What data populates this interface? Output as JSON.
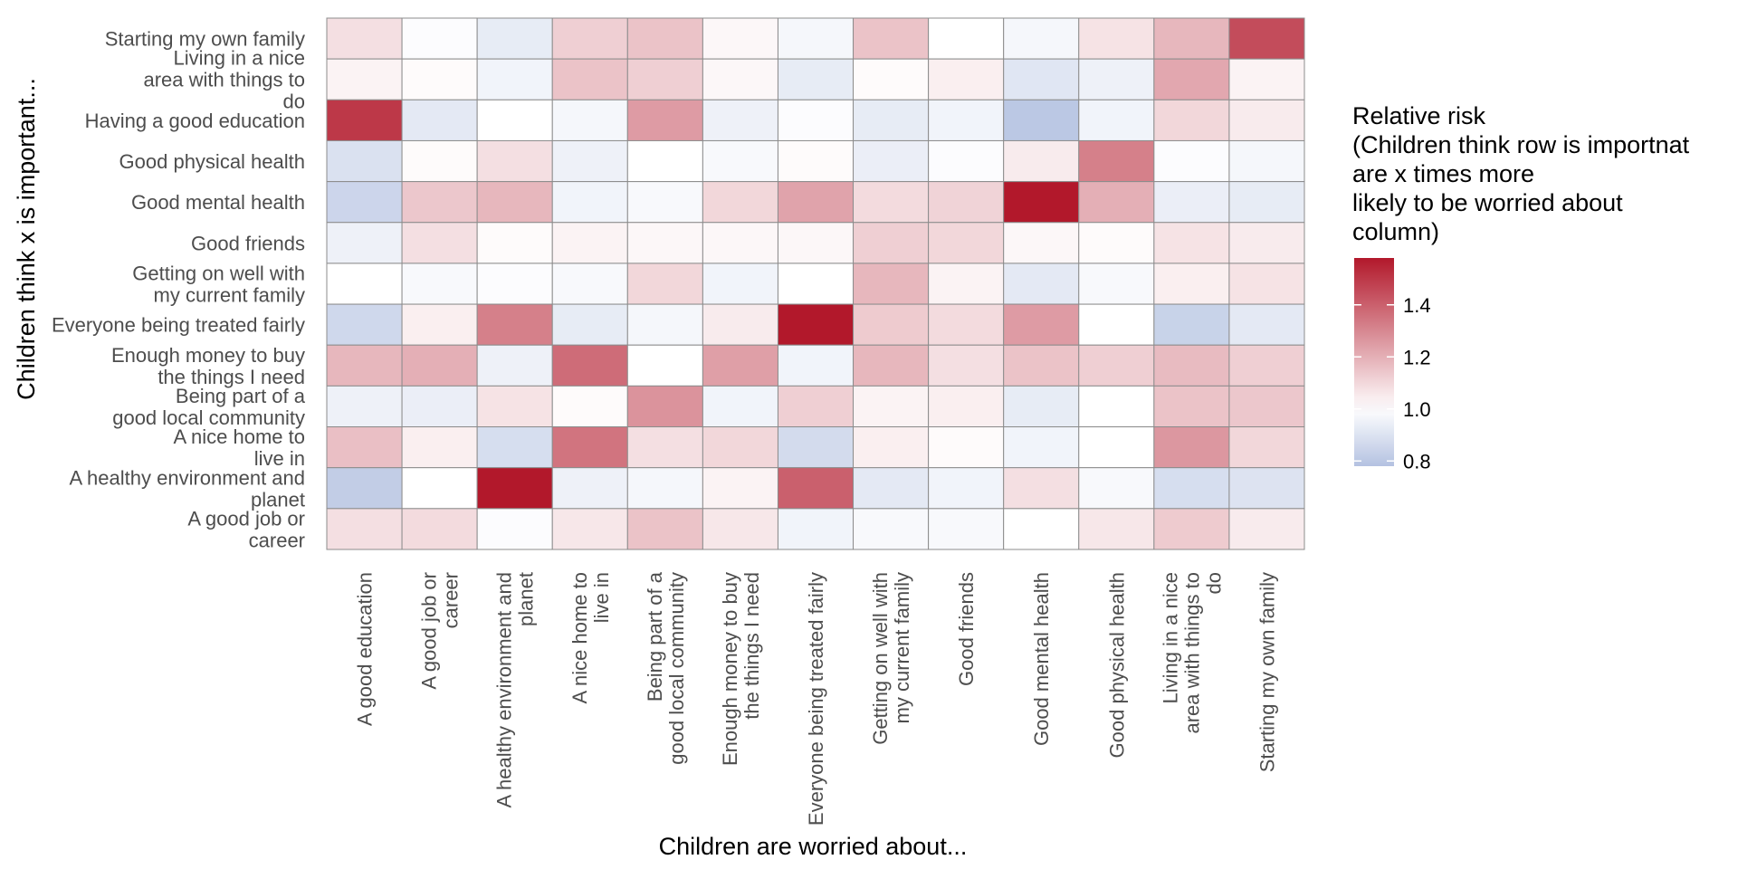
{
  "chart_data": {
    "type": "heatmap",
    "xlabel": "Children are worried about...",
    "ylabel": "Children think x is important...",
    "x_categories": [
      [
        "A good education"
      ],
      [
        "A good job or",
        "career"
      ],
      [
        "A healthy environment and",
        "planet"
      ],
      [
        "A nice home to",
        "live in"
      ],
      [
        "Being part of a",
        "good local community"
      ],
      [
        "Enough money to buy",
        "the things I need"
      ],
      [
        "Everyone being treated fairly"
      ],
      [
        "Getting on well with",
        "my current family"
      ],
      [
        "Good friends"
      ],
      [
        "Good mental health"
      ],
      [
        "Good physical health"
      ],
      [
        "Living in a nice",
        "area with things to",
        "do"
      ],
      [
        "Starting my own family"
      ]
    ],
    "y_categories": [
      [
        "Starting my own family"
      ],
      [
        "Living in a nice",
        "area with things to",
        "do"
      ],
      [
        "Having a good education"
      ],
      [
        "Good physical health"
      ],
      [
        "Good mental health"
      ],
      [
        "Good friends"
      ],
      [
        "Getting on well with",
        "my current family"
      ],
      [
        "Everyone being treated fairly"
      ],
      [
        "Enough money to buy",
        "the things I need"
      ],
      [
        "Being part of a",
        "good local community"
      ],
      [
        "A nice home to",
        "live in"
      ],
      [
        "A healthy environment and",
        "planet"
      ],
      [
        "A good job or",
        "career"
      ]
    ],
    "values": [
      [
        1.08,
        0.99,
        0.93,
        1.12,
        1.15,
        1.02,
        0.97,
        1.15,
        1.0,
        0.97,
        1.07,
        1.18,
        1.45
      ],
      [
        1.03,
        1.01,
        0.96,
        1.15,
        1.12,
        1.02,
        0.93,
        1.01,
        1.04,
        0.91,
        0.95,
        1.22,
        1.03
      ],
      [
        1.5,
        0.92,
        1.0,
        0.97,
        1.25,
        0.95,
        0.99,
        0.93,
        0.96,
        0.8,
        0.96,
        1.1,
        1.05
      ],
      [
        0.89,
        1.01,
        1.08,
        0.95,
        1.0,
        0.98,
        1.01,
        0.94,
        0.99,
        1.05,
        1.32,
        0.99,
        0.97
      ],
      [
        0.85,
        1.14,
        1.18,
        0.96,
        0.98,
        1.1,
        1.23,
        1.09,
        1.11,
        1.58,
        1.2,
        0.94,
        0.93
      ],
      [
        0.95,
        1.08,
        1.01,
        1.03,
        1.02,
        1.02,
        1.02,
        1.12,
        1.1,
        1.02,
        1.01,
        1.07,
        1.05
      ],
      [
        1.0,
        0.98,
        0.99,
        0.98,
        1.1,
        0.96,
        1.0,
        1.18,
        1.03,
        0.92,
        0.98,
        1.04,
        1.07
      ],
      [
        0.86,
        1.04,
        1.32,
        0.93,
        0.97,
        1.05,
        1.6,
        1.13,
        1.09,
        1.25,
        1.0,
        0.84,
        0.92
      ],
      [
        1.18,
        1.2,
        0.95,
        1.37,
        1.0,
        1.24,
        0.96,
        1.18,
        1.08,
        1.15,
        1.12,
        1.17,
        1.12
      ],
      [
        0.95,
        0.94,
        1.07,
        1.01,
        1.27,
        0.96,
        1.12,
        1.03,
        1.04,
        0.93,
        1.0,
        1.15,
        1.14
      ],
      [
        1.16,
        1.04,
        0.88,
        1.35,
        1.08,
        1.1,
        0.87,
        1.04,
        1.01,
        0.96,
        1.0,
        1.26,
        1.1
      ],
      [
        0.82,
        1.0,
        1.6,
        0.95,
        0.97,
        1.03,
        1.4,
        0.92,
        0.96,
        1.08,
        0.98,
        0.88,
        0.9
      ],
      [
        1.08,
        1.09,
        0.99,
        1.06,
        1.15,
        1.06,
        0.96,
        0.98,
        0.98,
        1.0,
        1.06,
        1.13,
        1.05
      ]
    ],
    "color_scale": {
      "type": "diverging",
      "low_color": "#b4c2e1",
      "mid_color": "#ffffff",
      "high_color": "#b2182b",
      "midpoint": 1.0,
      "range": [
        0.78,
        1.58
      ]
    },
    "legend": {
      "title_lines": [
        "Relative risk",
        "(Children think row is importnat",
        "are x times more",
        "likely to be worried about",
        "column)"
      ],
      "ticks": [
        "1.4",
        "1.2",
        "1.0",
        "0.8"
      ],
      "tick_values": [
        1.4,
        1.2,
        1.0,
        0.8
      ],
      "placement": "right"
    },
    "grid": false,
    "cell_border_color": "#8c8c8c"
  }
}
